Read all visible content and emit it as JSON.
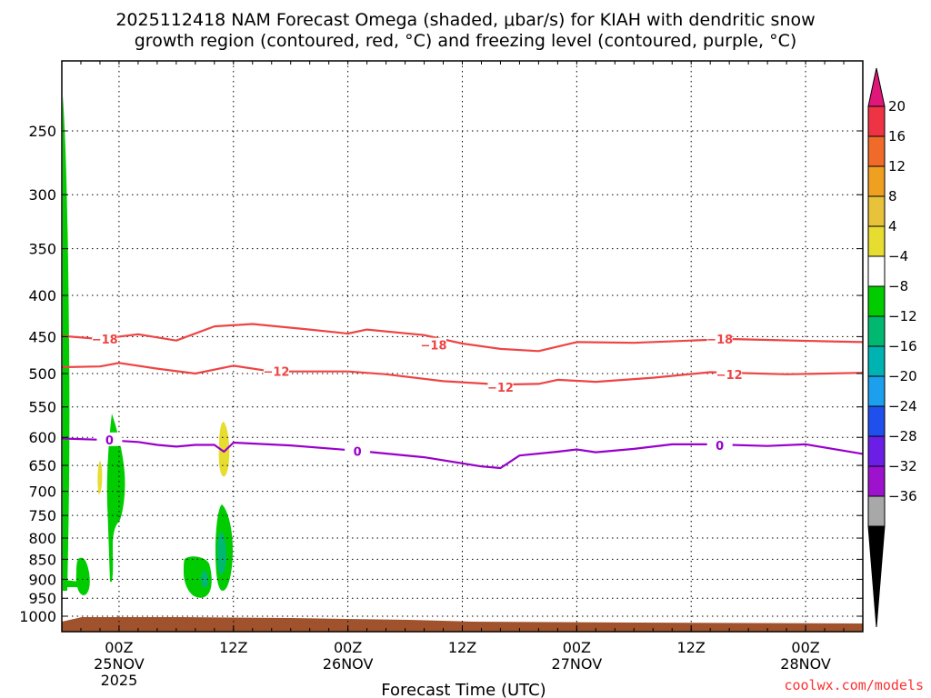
{
  "title": {
    "line1": "2025112418 NAM Forecast Omega (shaded, μbar/s) for KIAH with dendritic snow",
    "line2": "growth region (contoured, red, °C) and freezing level (contoured, purple, °C)"
  },
  "x_axis_title": "Forecast Time (UTC)",
  "credit": "coolwx.com/models",
  "chart_data": {
    "type": "time-height",
    "x_range_hours": [
      0,
      84
    ],
    "x_ticks": [
      {
        "h": 6,
        "l1": "00Z",
        "l2": "25NOV",
        "l3": "2025"
      },
      {
        "h": 18,
        "l1": "12Z",
        "l2": "",
        "l3": ""
      },
      {
        "h": 30,
        "l1": "00Z",
        "l2": "26NOV",
        "l3": ""
      },
      {
        "h": 42,
        "l1": "12Z",
        "l2": "",
        "l3": ""
      },
      {
        "h": 54,
        "l1": "00Z",
        "l2": "27NOV",
        "l3": ""
      },
      {
        "h": 66,
        "l1": "12Z",
        "l2": "",
        "l3": ""
      },
      {
        "h": 78,
        "l1": "00Z",
        "l2": "28NOV",
        "l3": ""
      }
    ],
    "y_axis_pressure_hPa": [
      250,
      300,
      350,
      400,
      450,
      500,
      550,
      600,
      650,
      700,
      750,
      800,
      850,
      900,
      950,
      1000
    ],
    "colorbar": {
      "ticks": [
        "20",
        "16",
        "12",
        "8",
        "4",
        "−4",
        "−8",
        "−12",
        "−16",
        "−20",
        "−24",
        "−28",
        "−32",
        "−36"
      ],
      "colors": [
        "#ee3344",
        "#f06a2a",
        "#f0a020",
        "#e8c23a",
        "#e6dd30",
        "#ffffff",
        "#00cc00",
        "#00b870",
        "#00b3b3",
        "#1ca0ee",
        "#1f50ee",
        "#6a1ee6",
        "#9d12cc",
        "#a8a8a8"
      ],
      "top_cap_color": "#e0167a",
      "bottom_cap_color": "#000000"
    },
    "contours": [
      {
        "name": "-18",
        "label": "−18",
        "color": "#ee4444",
        "points": [
          [
            0,
            449
          ],
          [
            4,
            453
          ],
          [
            8,
            447
          ],
          [
            12,
            455
          ],
          [
            16,
            437
          ],
          [
            20,
            434
          ],
          [
            26,
            441
          ],
          [
            30,
            446
          ],
          [
            32,
            441
          ],
          [
            38,
            448
          ],
          [
            42,
            459
          ],
          [
            46,
            466
          ],
          [
            50,
            469
          ],
          [
            54,
            457
          ],
          [
            60,
            458
          ],
          [
            66,
            455
          ],
          [
            70,
            453
          ],
          [
            80,
            456
          ],
          [
            84,
            457
          ]
        ],
        "label_at": [
          [
            4.5,
            453
          ],
          [
            39,
            461
          ],
          [
            69,
            453
          ]
        ]
      },
      {
        "name": "-12",
        "label": "−12",
        "color": "#ee4444",
        "points": [
          [
            0,
            491
          ],
          [
            4,
            490
          ],
          [
            6,
            485
          ],
          [
            10,
            493
          ],
          [
            14,
            500
          ],
          [
            18,
            489
          ],
          [
            22,
            497
          ],
          [
            30,
            497
          ],
          [
            34,
            501
          ],
          [
            40,
            511
          ],
          [
            46,
            516
          ],
          [
            50,
            515
          ],
          [
            52,
            509
          ],
          [
            56,
            512
          ],
          [
            62,
            506
          ],
          [
            68,
            498
          ],
          [
            76,
            501
          ],
          [
            84,
            499
          ]
        ],
        "label_at": [
          [
            22.5,
            497
          ],
          [
            46,
            520
          ],
          [
            70,
            501
          ]
        ]
      },
      {
        "name": "0",
        "label": "0",
        "color": "#9900cc",
        "points": [
          [
            0,
            602
          ],
          [
            4,
            604
          ],
          [
            8,
            608
          ],
          [
            10,
            613
          ],
          [
            12,
            616
          ],
          [
            14,
            613
          ],
          [
            16,
            613
          ],
          [
            17,
            625
          ],
          [
            18,
            609
          ],
          [
            24,
            614
          ],
          [
            30,
            622
          ],
          [
            32,
            625
          ],
          [
            38,
            635
          ],
          [
            44,
            652
          ],
          [
            46,
            655
          ],
          [
            48,
            632
          ],
          [
            52,
            625
          ],
          [
            54,
            621
          ],
          [
            56,
            626
          ],
          [
            60,
            620
          ],
          [
            64,
            612
          ],
          [
            68,
            612
          ],
          [
            74,
            615
          ],
          [
            78,
            612
          ],
          [
            84,
            629
          ]
        ],
        "label_at": [
          [
            5,
            604
          ],
          [
            31,
            624
          ],
          [
            69,
            614
          ]
        ]
      }
    ]
  }
}
